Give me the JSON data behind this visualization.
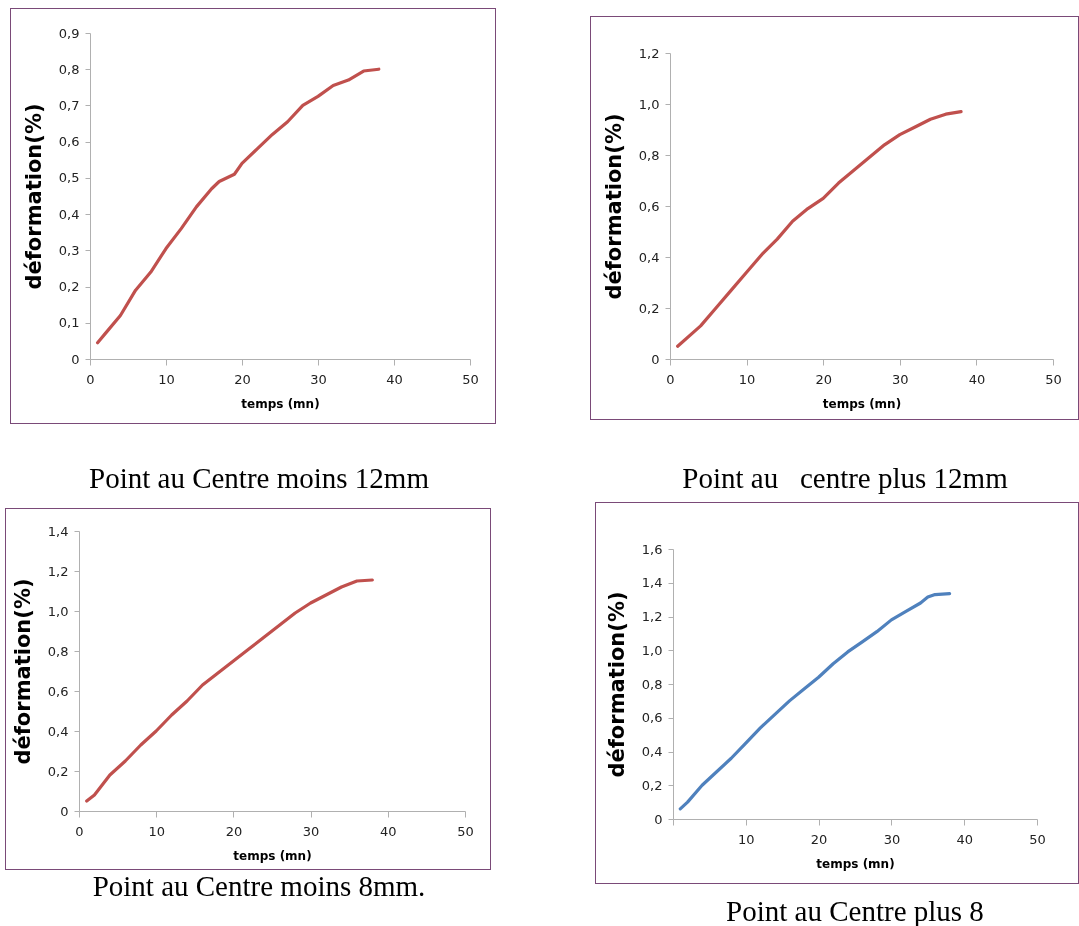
{
  "chart_data": [
    {
      "type": "line",
      "title": "Point au Centre moins 12mm",
      "xlabel": "temps (mn)",
      "ylabel": "déformation(%)",
      "x": [
        1,
        2,
        4,
        6,
        8,
        10,
        12,
        14,
        16,
        17,
        19,
        20,
        22,
        24,
        26,
        28,
        30,
        32,
        34,
        36,
        38
      ],
      "series": [
        {
          "color": "#c0504d",
          "values": [
            0.045,
            0.07,
            0.12,
            0.19,
            0.24,
            0.305,
            0.36,
            0.42,
            0.47,
            0.49,
            0.51,
            0.54,
            0.58,
            0.62,
            0.655,
            0.7,
            0.725,
            0.755,
            0.77,
            0.795,
            0.8
          ]
        }
      ],
      "xlim": [
        0,
        50
      ],
      "xticks": [
        0,
        10,
        20,
        30,
        40,
        50
      ],
      "ylim": [
        0,
        0.9
      ],
      "yticks": [
        {
          "value": 0,
          "label": "0"
        },
        {
          "value": 0.1,
          "label": "0,1"
        },
        {
          "value": 0.2,
          "label": "0,2"
        },
        {
          "value": 0.3,
          "label": "0,3"
        },
        {
          "value": 0.4,
          "label": "0,4"
        },
        {
          "value": 0.5,
          "label": "0,5"
        },
        {
          "value": 0.6,
          "label": "0,6"
        },
        {
          "value": 0.7,
          "label": "0,7"
        },
        {
          "value": 0.8,
          "label": "0,8"
        },
        {
          "value": 0.9,
          "label": "0,9"
        }
      ]
    },
    {
      "type": "line",
      "title": "Point au   centre plus 12mm",
      "xlabel": "temps (mn)",
      "ylabel": "déformation(%)",
      "x": [
        1,
        4,
        6,
        8,
        10,
        12,
        14,
        16,
        18,
        20,
        22,
        24,
        26,
        28,
        30,
        32,
        34,
        36,
        38
      ],
      "series": [
        {
          "color": "#c0504d",
          "values": [
            0.05,
            0.13,
            0.2,
            0.27,
            0.34,
            0.41,
            0.47,
            0.54,
            0.59,
            0.63,
            0.69,
            0.74,
            0.79,
            0.84,
            0.88,
            0.91,
            0.94,
            0.96,
            0.97
          ]
        }
      ],
      "xlim": [
        0,
        50
      ],
      "xticks": [
        0,
        10,
        20,
        30,
        40,
        50
      ],
      "ylim": [
        0,
        1.2
      ],
      "yticks": [
        {
          "value": 0,
          "label": "0"
        },
        {
          "value": 0.2,
          "label": "0,2"
        },
        {
          "value": 0.4,
          "label": "0,4"
        },
        {
          "value": 0.6,
          "label": "0,6"
        },
        {
          "value": 0.8,
          "label": "0,8"
        },
        {
          "value": 1,
          "label": "1,0"
        },
        {
          "value": 1.2,
          "label": "1,2"
        }
      ]
    },
    {
      "type": "line",
      "title": "Point au Centre moins 8mm.",
      "xlabel": "temps (mn)",
      "ylabel": "déformation(%)",
      "x": [
        1,
        2,
        4,
        6,
        8,
        10,
        12,
        14,
        16,
        18,
        20,
        22,
        24,
        26,
        28,
        30,
        32,
        34,
        36,
        38
      ],
      "series": [
        {
          "color": "#c0504d",
          "values": [
            0.05,
            0.08,
            0.18,
            0.25,
            0.33,
            0.4,
            0.48,
            0.55,
            0.63,
            0.69,
            0.75,
            0.81,
            0.87,
            0.93,
            0.99,
            1.04,
            1.08,
            1.12,
            1.15,
            1.155
          ]
        }
      ],
      "xlim": [
        0,
        50
      ],
      "xticks": [
        0,
        10,
        20,
        30,
        40,
        50
      ],
      "ylim": [
        0,
        1.4
      ],
      "yticks": [
        {
          "value": 0,
          "label": "0"
        },
        {
          "value": 0.2,
          "label": "0,2"
        },
        {
          "value": 0.4,
          "label": "0,4"
        },
        {
          "value": 0.6,
          "label": "0,6"
        },
        {
          "value": 0.8,
          "label": "0,8"
        },
        {
          "value": 1,
          "label": "1,0"
        },
        {
          "value": 1.2,
          "label": "1,2"
        },
        {
          "value": 1.4,
          "label": "1,4"
        }
      ]
    },
    {
      "type": "line",
      "title": "Point au Centre plus 8",
      "xlabel": "temps (mn)",
      "ylabel": "déformation(%)",
      "x": [
        1,
        2,
        4,
        6,
        8,
        10,
        12,
        14,
        16,
        18,
        20,
        22,
        24,
        26,
        28,
        30,
        32,
        34,
        35,
        36,
        38
      ],
      "series": [
        {
          "color": "#4f81bd",
          "values": [
            0.06,
            0.1,
            0.2,
            0.28,
            0.36,
            0.45,
            0.54,
            0.62,
            0.7,
            0.77,
            0.84,
            0.92,
            0.99,
            1.05,
            1.11,
            1.18,
            1.23,
            1.28,
            1.315,
            1.33,
            1.335
          ]
        }
      ],
      "xlim": [
        0,
        50
      ],
      "xticks": [
        {
          "value": 0,
          "label": null
        },
        10,
        20,
        30,
        40,
        50
      ],
      "ylim": [
        0,
        1.6
      ],
      "yticks": [
        {
          "value": 0,
          "label": "0"
        },
        {
          "value": 0.2,
          "label": "0,2"
        },
        {
          "value": 0.4,
          "label": "0,4"
        },
        {
          "value": 0.6,
          "label": "0,6"
        },
        {
          "value": 0.8,
          "label": "0,8"
        },
        {
          "value": 1,
          "label": "1,0"
        },
        {
          "value": 1.2,
          "label": "1,2"
        },
        {
          "value": 1.4,
          "label": "1,4"
        },
        {
          "value": 1.6,
          "label": "1,6"
        }
      ]
    }
  ]
}
